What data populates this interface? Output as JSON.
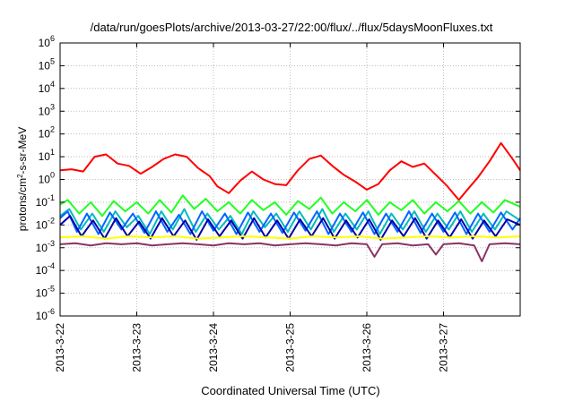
{
  "chart_data": {
    "type": "line",
    "title": "/data/run/goesPlots/archive/2013-03-27/22:00/flux/../flux/5daysMoonFluxes.txt",
    "xlabel": "Coordinated Universal Time (UTC)",
    "ylabel": "protons/cm²-s-sr-MeV",
    "ylabel_parts": {
      "before": "protons/cm",
      "sup": "2",
      "after": "-s-sr-MeV"
    },
    "yscale": "log",
    "ylim_exp": [
      -6,
      6
    ],
    "y_ticks": [
      {
        "base": "10",
        "exp": "-6",
        "value": -6
      },
      {
        "base": "10",
        "exp": "-5",
        "value": -5
      },
      {
        "base": "10",
        "exp": "-4",
        "value": -4
      },
      {
        "base": "10",
        "exp": "-3",
        "value": -3
      },
      {
        "base": "10",
        "exp": "-2",
        "value": -2
      },
      {
        "base": "10",
        "exp": "-1",
        "value": -1
      },
      {
        "base": "10",
        "exp": "0",
        "value": 0
      },
      {
        "base": "10",
        "exp": "1",
        "value": 1
      },
      {
        "base": "10",
        "exp": "2",
        "value": 2
      },
      {
        "base": "10",
        "exp": "3",
        "value": 3
      },
      {
        "base": "10",
        "exp": "4",
        "value": 4
      },
      {
        "base": "10",
        "exp": "5",
        "value": 5
      },
      {
        "base": "10",
        "exp": "6",
        "value": 6
      }
    ],
    "x_ticks": [
      {
        "label": "2013-3-22",
        "day": 0
      },
      {
        "label": "2013-3-23",
        "day": 1
      },
      {
        "label": "2013-3-24",
        "day": 2
      },
      {
        "label": "2013-3-25",
        "day": 3
      },
      {
        "label": "2013-3-26",
        "day": 4
      },
      {
        "label": "2013-3-27",
        "day": 5
      }
    ],
    "x_range_days": [
      0,
      6
    ],
    "grid": true,
    "series": [
      {
        "color": "#ff0000",
        "day": [
          0,
          0.15,
          0.3,
          0.45,
          0.6,
          0.75,
          0.9,
          1.05,
          1.2,
          1.35,
          1.5,
          1.65,
          1.8,
          1.95,
          2.05,
          2.2,
          2.35,
          2.5,
          2.65,
          2.8,
          2.95,
          3.1,
          3.25,
          3.4,
          3.55,
          3.7,
          3.85,
          4.0,
          4.15,
          4.3,
          4.45,
          4.6,
          4.75,
          4.9,
          5.05,
          5.2,
          5.3,
          5.45,
          5.6,
          5.75,
          5.9,
          6.0
        ],
        "log10_flux": [
          0.4,
          0.45,
          0.35,
          1.0,
          1.1,
          0.7,
          0.6,
          0.25,
          0.55,
          0.9,
          1.1,
          1.0,
          0.5,
          0.15,
          -0.3,
          -0.6,
          -0.05,
          0.35,
          0.0,
          -0.2,
          -0.25,
          0.4,
          0.9,
          1.05,
          0.6,
          0.2,
          -0.1,
          -0.45,
          -0.2,
          0.4,
          0.8,
          0.55,
          0.7,
          0.2,
          -0.3,
          -0.9,
          -0.5,
          0.1,
          0.8,
          1.6,
          0.9,
          0.4
        ]
      },
      {
        "color": "#22ff22",
        "day": [
          0,
          0.1,
          0.25,
          0.4,
          0.55,
          0.7,
          0.85,
          1.0,
          1.15,
          1.3,
          1.45,
          1.6,
          1.75,
          1.9,
          2.05,
          2.2,
          2.35,
          2.5,
          2.65,
          2.8,
          2.95,
          3.1,
          3.25,
          3.4,
          3.55,
          3.7,
          3.85,
          4.0,
          4.15,
          4.3,
          4.45,
          4.6,
          4.75,
          4.9,
          5.05,
          5.2,
          5.35,
          5.5,
          5.65,
          5.8,
          6.0
        ],
        "log10_flux": [
          -1.1,
          -0.9,
          -1.5,
          -1.0,
          -1.6,
          -0.95,
          -1.4,
          -1.0,
          -1.5,
          -0.9,
          -1.45,
          -0.7,
          -1.3,
          -0.85,
          -1.4,
          -1.0,
          -1.5,
          -0.9,
          -1.35,
          -1.0,
          -1.55,
          -0.95,
          -1.3,
          -0.8,
          -1.5,
          -1.0,
          -1.4,
          -0.9,
          -1.55,
          -1.0,
          -1.35,
          -0.9,
          -1.5,
          -1.0,
          -1.4,
          -0.95,
          -1.5,
          -1.0,
          -1.45,
          -0.9,
          -1.2
        ]
      },
      {
        "color": "#00bbbb",
        "day": [
          0,
          0.12,
          0.27,
          0.42,
          0.57,
          0.72,
          0.87,
          1.02,
          1.17,
          1.32,
          1.47,
          1.62,
          1.77,
          1.92,
          2.07,
          2.22,
          2.37,
          2.52,
          2.67,
          2.82,
          2.97,
          3.12,
          3.27,
          3.42,
          3.57,
          3.72,
          3.87,
          4.02,
          4.17,
          4.32,
          4.47,
          4.62,
          4.77,
          4.92,
          5.07,
          5.22,
          5.37,
          5.52,
          5.67,
          5.82,
          6.0
        ],
        "log10_flux": [
          -1.6,
          -1.3,
          -2.2,
          -1.5,
          -2.3,
          -1.4,
          -2.1,
          -1.6,
          -2.4,
          -1.4,
          -2.2,
          -1.3,
          -2.3,
          -1.5,
          -2.2,
          -1.6,
          -2.4,
          -1.4,
          -2.1,
          -1.5,
          -2.3,
          -1.4,
          -2.2,
          -1.3,
          -2.3,
          -1.5,
          -2.2,
          -1.4,
          -2.4,
          -1.5,
          -2.2,
          -1.4,
          -2.3,
          -1.5,
          -2.2,
          -1.4,
          -2.3,
          -1.5,
          -2.2,
          -1.4,
          -1.8
        ]
      },
      {
        "color": "#0066ff",
        "day": [
          0,
          0.1,
          0.22,
          0.35,
          0.5,
          0.65,
          0.8,
          0.95,
          1.1,
          1.25,
          1.4,
          1.55,
          1.7,
          1.85,
          2.0,
          2.15,
          2.3,
          2.45,
          2.6,
          2.75,
          2.9,
          3.05,
          3.2,
          3.35,
          3.5,
          3.65,
          3.8,
          3.95,
          4.1,
          4.25,
          4.4,
          4.55,
          4.7,
          4.85,
          5.0,
          5.15,
          5.3,
          5.45,
          5.6,
          5.75,
          5.9,
          6.0
        ],
        "log10_flux": [
          -1.7,
          -1.4,
          -2.3,
          -1.5,
          -2.4,
          -1.45,
          -2.2,
          -1.5,
          -2.35,
          -1.4,
          -2.3,
          -1.55,
          -2.4,
          -1.4,
          -2.25,
          -1.5,
          -2.4,
          -1.45,
          -2.3,
          -1.5,
          -2.35,
          -1.45,
          -2.25,
          -1.4,
          -2.4,
          -1.5,
          -2.3,
          -1.45,
          -2.4,
          -1.5,
          -2.3,
          -1.4,
          -2.35,
          -1.5,
          -2.3,
          -1.45,
          -2.4,
          -1.5,
          -2.3,
          -1.45,
          -2.2,
          -1.7
        ]
      },
      {
        "color": "#0000aa",
        "day": [
          0,
          0.13,
          0.28,
          0.43,
          0.58,
          0.73,
          0.88,
          1.03,
          1.18,
          1.33,
          1.48,
          1.63,
          1.78,
          1.93,
          2.08,
          2.23,
          2.38,
          2.53,
          2.68,
          2.83,
          2.98,
          3.13,
          3.28,
          3.43,
          3.58,
          3.73,
          3.88,
          4.03,
          4.18,
          4.33,
          4.48,
          4.63,
          4.78,
          4.93,
          5.08,
          5.23,
          5.38,
          5.53,
          5.68,
          5.83,
          6.0
        ],
        "log10_flux": [
          -2.0,
          -1.6,
          -2.5,
          -1.8,
          -2.6,
          -1.7,
          -2.5,
          -1.85,
          -2.6,
          -1.7,
          -2.5,
          -1.8,
          -2.65,
          -1.75,
          -2.5,
          -1.8,
          -2.6,
          -1.7,
          -2.55,
          -1.8,
          -2.6,
          -1.75,
          -2.5,
          -1.7,
          -2.6,
          -1.8,
          -2.55,
          -1.75,
          -2.65,
          -1.8,
          -2.5,
          -1.7,
          -2.6,
          -1.8,
          -2.55,
          -1.75,
          -2.6,
          -1.8,
          -2.5,
          -1.75,
          -2.0
        ]
      },
      {
        "color": "#ffff00",
        "day": [
          0,
          0.3,
          0.6,
          0.9,
          1.2,
          1.5,
          1.8,
          2.1,
          2.4,
          2.7,
          3.0,
          3.3,
          3.6,
          3.9,
          4.2,
          4.5,
          4.8,
          5.1,
          5.4,
          5.7,
          6.0
        ],
        "log10_flux": [
          -2.55,
          -2.5,
          -2.6,
          -2.5,
          -2.55,
          -2.5,
          -2.6,
          -2.55,
          -2.5,
          -2.55,
          -2.6,
          -2.5,
          -2.55,
          -2.5,
          -2.6,
          -2.55,
          -2.5,
          -2.55,
          -2.5,
          -2.55,
          -2.5
        ]
      },
      {
        "color": "#883366",
        "day": [
          0,
          0.2,
          0.4,
          0.6,
          0.8,
          1.0,
          1.2,
          1.4,
          1.6,
          1.8,
          2.0,
          2.2,
          2.4,
          2.6,
          2.8,
          3.0,
          3.2,
          3.4,
          3.6,
          3.8,
          4.0,
          4.1,
          4.2,
          4.4,
          4.6,
          4.8,
          4.9,
          5.0,
          5.2,
          5.4,
          5.5,
          5.6,
          5.8,
          6.0
        ],
        "log10_flux": [
          -2.85,
          -2.8,
          -2.9,
          -2.8,
          -2.85,
          -2.8,
          -2.9,
          -2.85,
          -2.8,
          -2.85,
          -2.9,
          -2.8,
          -2.85,
          -2.8,
          -2.9,
          -2.85,
          -2.8,
          -2.85,
          -2.9,
          -2.8,
          -2.85,
          -3.4,
          -2.85,
          -2.8,
          -2.9,
          -2.85,
          -3.3,
          -2.85,
          -2.8,
          -2.9,
          -3.6,
          -2.85,
          -2.8,
          -2.85
        ]
      }
    ]
  }
}
